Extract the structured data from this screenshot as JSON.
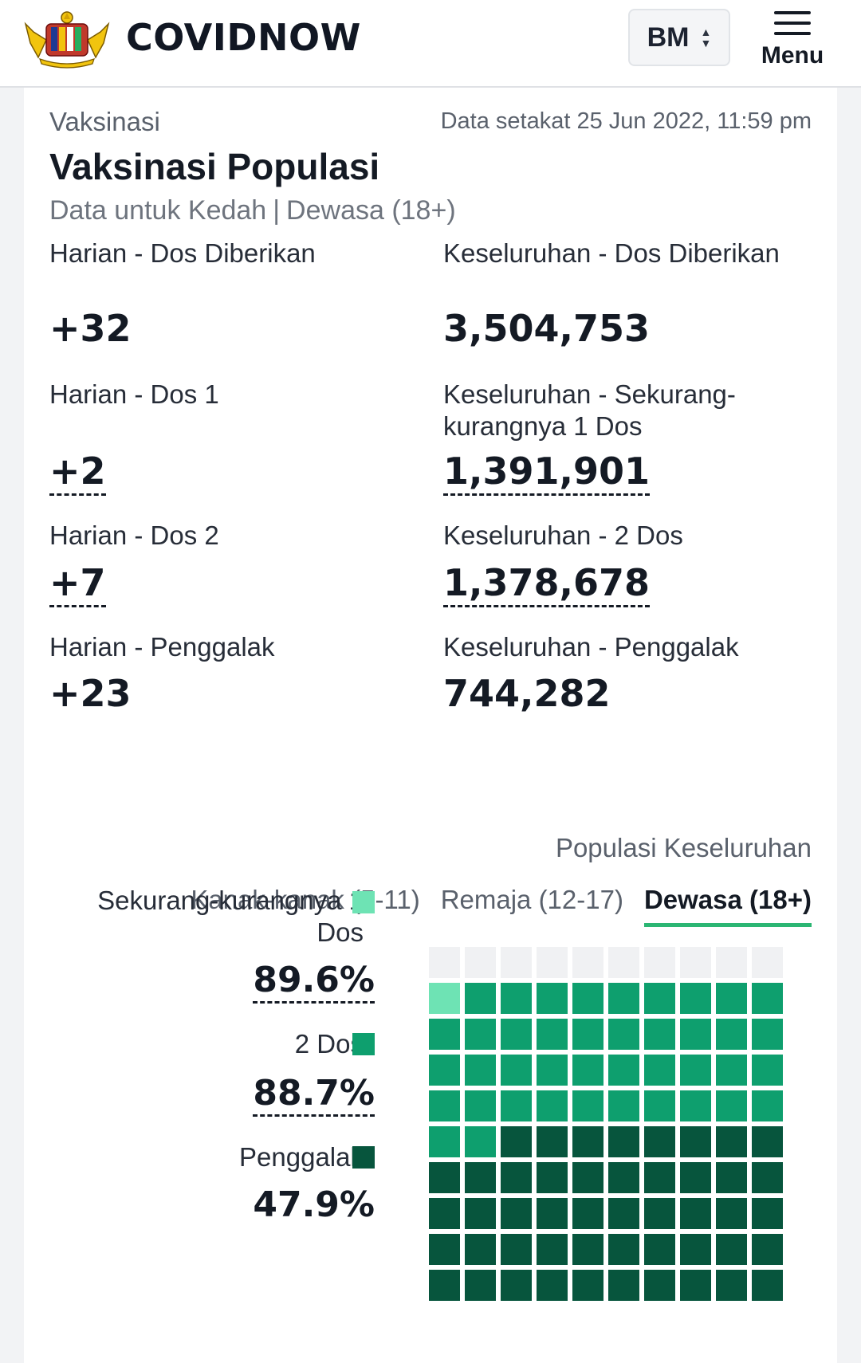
{
  "header": {
    "brand": "COVIDNOW",
    "language": "BM",
    "menu_label": "Menu"
  },
  "card": {
    "section": "Vaksinasi",
    "as_of": "Data setakat 25 Jun 2022, 11:59 pm",
    "title": "Vaksinasi Populasi",
    "subtitle_state": "Data untuk Kedah",
    "subtitle_sep": "|",
    "subtitle_group": "Dewasa (18+)"
  },
  "stats": {
    "daily_doses_label": "Harian - Dos Diberikan",
    "daily_doses_value": "+32",
    "total_doses_label": "Keseluruhan - Dos Diberikan",
    "total_doses_value": "3,504,753",
    "daily_dose1_label": "Harian - Dos 1",
    "daily_dose1_value": "+2",
    "total_dose1_label": "Keseluruhan - Sekurang-kurangnya 1 Dos",
    "total_dose1_value": "1,391,901",
    "daily_dose2_label": "Harian - Dos 2",
    "daily_dose2_value": "+7",
    "total_dose2_label": "Keseluruhan - 2 Dos",
    "total_dose2_value": "1,378,678",
    "daily_booster_label": "Harian - Penggalak",
    "daily_booster_value": "+23",
    "total_booster_label": "Keseluruhan - Penggalak",
    "total_booster_value": "744,282"
  },
  "population": {
    "label": "Populasi Keseluruhan",
    "tabs": [
      "Kanak-kanak (5-11)",
      "Remaja (12-17)",
      "Dewasa (18+)"
    ],
    "active_tab": 2
  },
  "legend": {
    "dose1_label": "Sekurang-kurangnya 1 Dos",
    "dose1_pct": "89.6%",
    "dose2_label": "2 Dos",
    "dose2_pct": "88.7%",
    "booster_label": "Penggalak",
    "booster_pct": "47.9%"
  },
  "colors": {
    "dose1": "#6ee3b4",
    "dose2": "#0e9f6e",
    "booster": "#07553d",
    "empty": "#f0f1f3",
    "tab_underline": "#2bb673"
  },
  "waffle": {
    "dose1_pct": 89.6,
    "dose2_pct": 88.7,
    "booster_pct": 47.9
  }
}
